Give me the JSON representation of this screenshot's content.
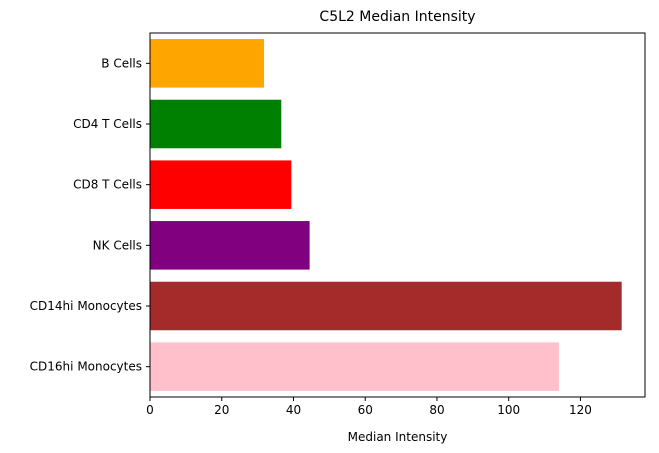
{
  "chart_data": {
    "type": "bar",
    "orientation": "horizontal",
    "title": "C5L2 Median Intensity",
    "xlabel": "Median Intensity",
    "ylabel": "",
    "xlim": [
      0,
      138
    ],
    "xticks": [
      0,
      20,
      40,
      60,
      80,
      100,
      120
    ],
    "categories": [
      "B Cells",
      "CD4 T Cells",
      "CD8 T Cells",
      "NK Cells",
      "CD14hi Monocytes",
      "CD16hi Monocytes"
    ],
    "values": [
      31.8,
      36.6,
      39.4,
      44.5,
      131.5,
      114.0
    ],
    "colors": [
      "#FFA500",
      "#008000",
      "#FF0000",
      "#800080",
      "#A52A2A",
      "#FFC0CB"
    ],
    "grid": false,
    "legend": "none"
  }
}
